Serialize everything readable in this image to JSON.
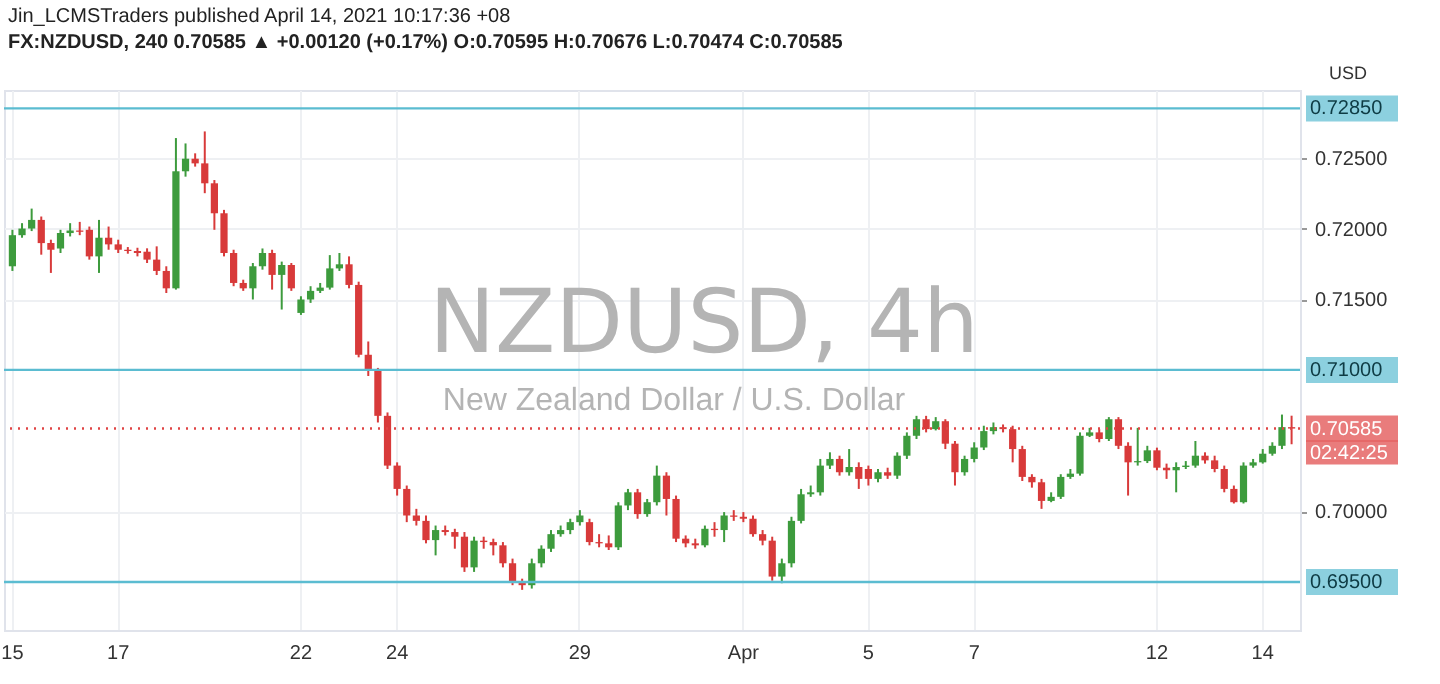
{
  "chart_data": {
    "type": "candlestick",
    "title": "FX:NZDUSD, 240  0.70585 ▲ +0.00120 (+0.17%)  O:0.70595  H:0.70676  L:0.70474  C:0.70585",
    "ylabel": "USD",
    "annotations": [
      "Jin_LCMSTraders published April 14, 2021 10:17:36 +08",
      "NZDUSD, 4h",
      "New Zealand Dollar / U.S. Dollar",
      "02:42:25"
    ],
    "categories": [
      "15",
      null,
      null,
      null,
      null,
      null,
      null,
      null,
      null,
      null,
      null,
      "17",
      null,
      null,
      null,
      null,
      null,
      null,
      null,
      null,
      null,
      null,
      null,
      null,
      null,
      null,
      null,
      null,
      null,
      null,
      "22",
      null,
      null,
      null,
      null,
      null,
      null,
      null,
      null,
      null,
      "24",
      null,
      null,
      null,
      null,
      null,
      null,
      null,
      null,
      null,
      null,
      null,
      null,
      null,
      null,
      null,
      null,
      null,
      null,
      "29",
      null,
      null,
      null,
      null,
      null,
      null,
      null,
      null,
      null,
      null,
      null,
      null,
      null,
      null,
      null,
      null,
      "Apr",
      null,
      null,
      null,
      null,
      null,
      null,
      null,
      null,
      null,
      null,
      null,
      null,
      "5",
      null,
      null,
      null,
      null,
      null,
      null,
      null,
      null,
      null,
      null,
      "7",
      null,
      null,
      null,
      null,
      null,
      null,
      null,
      null,
      null,
      null,
      null,
      null,
      null,
      null,
      null,
      null,
      null,
      null,
      "12",
      null,
      null,
      null,
      null,
      null,
      null,
      null,
      null,
      null,
      null,
      "14",
      null,
      null,
      null
    ],
    "ohlc": [
      [
        0.71733,
        0.71991,
        0.717,
        0.71953
      ],
      [
        0.71953,
        0.72038,
        0.71935,
        0.72
      ],
      [
        0.72,
        0.72141,
        0.71982,
        0.72061
      ],
      [
        0.72061,
        0.72085,
        0.71815,
        0.71897
      ],
      [
        0.71897,
        0.71921,
        0.71686,
        0.7185
      ],
      [
        0.71859,
        0.71991,
        0.71827,
        0.71968
      ],
      [
        0.71968,
        0.72038,
        0.71944,
        0.71986
      ],
      [
        0.71986,
        0.72047,
        0.71953,
        0.71977
      ],
      [
        0.71991,
        0.72014,
        0.7178,
        0.71803
      ],
      [
        0.71803,
        0.72061,
        0.71686,
        0.71935
      ],
      [
        0.71935,
        0.72014,
        0.7185,
        0.71888
      ],
      [
        0.71888,
        0.71921,
        0.71827,
        0.7185
      ],
      [
        0.7185,
        0.71869,
        0.71822,
        0.71841
      ],
      [
        0.71841,
        0.71864,
        0.71803,
        0.71827
      ],
      [
        0.71836,
        0.7186,
        0.71756,
        0.7178
      ],
      [
        0.7178,
        0.71874,
        0.71671,
        0.717
      ],
      [
        0.717,
        0.71733,
        0.71544,
        0.71577
      ],
      [
        0.71577,
        0.7264,
        0.71568,
        0.72405
      ],
      [
        0.72405,
        0.72602,
        0.72367,
        0.72494
      ],
      [
        0.72494,
        0.72532,
        0.72438,
        0.72461
      ],
      [
        0.72461,
        0.72687,
        0.7225,
        0.7232
      ],
      [
        0.7232,
        0.72343,
        0.71991,
        0.72108
      ],
      [
        0.72108,
        0.72132,
        0.71803,
        0.71827
      ],
      [
        0.71827,
        0.7185,
        0.71592,
        0.71615
      ],
      [
        0.71615,
        0.71638,
        0.71559,
        0.71577
      ],
      [
        0.71577,
        0.71756,
        0.71498,
        0.71733
      ],
      [
        0.71733,
        0.71859,
        0.71709,
        0.71827
      ],
      [
        0.71827,
        0.7185,
        0.71568,
        0.71672
      ],
      [
        0.71672,
        0.71766,
        0.71427,
        0.71742
      ],
      [
        0.71742,
        0.71756,
        0.71559,
        0.71577
      ],
      [
        0.71403,
        0.71521,
        0.71389,
        0.71498
      ],
      [
        0.71498,
        0.71592,
        0.71474,
        0.71559
      ],
      [
        0.71559,
        0.71615,
        0.71544,
        0.71582
      ],
      [
        0.71582,
        0.71812,
        0.71568,
        0.71718
      ],
      [
        0.71718,
        0.71827,
        0.717,
        0.71747
      ],
      [
        0.71747,
        0.71803,
        0.71577,
        0.71601
      ],
      [
        0.71601,
        0.71624,
        0.71089,
        0.71107
      ],
      [
        0.71107,
        0.71201,
        0.70957,
        0.70995
      ],
      [
        0.70995,
        0.71014,
        0.70628,
        0.70675
      ],
      [
        0.70675,
        0.70699,
        0.70299,
        0.70323
      ],
      [
        0.70323,
        0.70346,
        0.70111,
        0.70158
      ],
      [
        0.70158,
        0.70182,
        0.69923,
        0.6997
      ],
      [
        0.6997,
        0.70017,
        0.69899,
        0.69932
      ],
      [
        0.69932,
        0.6997,
        0.69773,
        0.69796
      ],
      [
        0.69796,
        0.69899,
        0.69688,
        0.69867
      ],
      [
        0.69867,
        0.69899,
        0.69829,
        0.69853
      ],
      [
        0.69853,
        0.69876,
        0.69735,
        0.6982
      ],
      [
        0.6982,
        0.69853,
        0.69571,
        0.69603
      ],
      [
        0.69603,
        0.6982,
        0.69571,
        0.69792
      ],
      [
        0.69792,
        0.6982,
        0.69735,
        0.69782
      ],
      [
        0.69782,
        0.69806,
        0.69688,
        0.69759
      ],
      [
        0.69759,
        0.69782,
        0.69603,
        0.69632
      ],
      [
        0.69632,
        0.69665,
        0.69477,
        0.695
      ],
      [
        0.695,
        0.69523,
        0.69444,
        0.69477
      ],
      [
        0.69477,
        0.69665,
        0.69453,
        0.69632
      ],
      [
        0.69632,
        0.69759,
        0.69603,
        0.69735
      ],
      [
        0.69735,
        0.69867,
        0.69712,
        0.69838
      ],
      [
        0.69838,
        0.69899,
        0.6982,
        0.69867
      ],
      [
        0.69867,
        0.69947,
        0.69838,
        0.69923
      ],
      [
        0.69923,
        0.70008,
        0.69899,
        0.6997
      ],
      [
        0.69923,
        0.69947,
        0.69759,
        0.69782
      ],
      [
        0.69782,
        0.69838,
        0.69745,
        0.69773
      ],
      [
        0.69773,
        0.69829,
        0.69726,
        0.69745
      ],
      [
        0.69745,
        0.70064,
        0.69726,
        0.70041
      ],
      [
        0.70041,
        0.70158,
        0.70008,
        0.70134
      ],
      [
        0.70134,
        0.70158,
        0.69947,
        0.6998
      ],
      [
        0.6998,
        0.70087,
        0.69961,
        0.70064
      ],
      [
        0.70064,
        0.70323,
        0.70041,
        0.70252
      ],
      [
        0.70252,
        0.70276,
        0.6997,
        0.70087
      ],
      [
        0.70087,
        0.70111,
        0.69782,
        0.69806
      ],
      [
        0.69806,
        0.69829,
        0.69745,
        0.69773
      ],
      [
        0.69773,
        0.69806,
        0.69735,
        0.69759
      ],
      [
        0.69759,
        0.69899,
        0.69745,
        0.69876
      ],
      [
        0.69876,
        0.69923,
        0.6982,
        0.69867
      ],
      [
        0.69867,
        0.69994,
        0.69782,
        0.6997
      ],
      [
        0.6997,
        0.70008,
        0.69932,
        0.69961
      ],
      [
        0.69961,
        0.69994,
        0.69923,
        0.69947
      ],
      [
        0.69947,
        0.6997,
        0.6982,
        0.69838
      ],
      [
        0.69838,
        0.69867,
        0.69759,
        0.69792
      ],
      [
        0.69792,
        0.6982,
        0.69509,
        0.69538
      ],
      [
        0.69538,
        0.69665,
        0.69491,
        0.69632
      ],
      [
        0.69632,
        0.69961,
        0.69603,
        0.69932
      ],
      [
        0.69932,
        0.70158,
        0.69914,
        0.7012
      ],
      [
        0.7012,
        0.70182,
        0.70102,
        0.70134
      ],
      [
        0.70134,
        0.7037,
        0.70111,
        0.70323
      ],
      [
        0.70323,
        0.70417,
        0.70299,
        0.7037
      ],
      [
        0.7037,
        0.70393,
        0.70252,
        0.70276
      ],
      [
        0.70276,
        0.7044,
        0.70252,
        0.70313
      ],
      [
        0.70313,
        0.70346,
        0.70158,
        0.70229
      ],
      [
        0.70299,
        0.70323,
        0.70182,
        0.70229
      ],
      [
        0.70229,
        0.70299,
        0.70205,
        0.70276
      ],
      [
        0.70276,
        0.70308,
        0.70229,
        0.70252
      ],
      [
        0.70252,
        0.70417,
        0.70229,
        0.70393
      ],
      [
        0.70393,
        0.70558,
        0.7037,
        0.70534
      ],
      [
        0.70534,
        0.70675,
        0.70511,
        0.70651
      ],
      [
        0.70651,
        0.70675,
        0.70558,
        0.70581
      ],
      [
        0.70581,
        0.70666,
        0.70572,
        0.70637
      ],
      [
        0.70637,
        0.70651,
        0.7044,
        0.70478
      ],
      [
        0.70478,
        0.70497,
        0.70182,
        0.70276
      ],
      [
        0.70276,
        0.70393,
        0.70252,
        0.7037
      ],
      [
        0.7037,
        0.70488,
        0.70346,
        0.70451
      ],
      [
        0.70451,
        0.70605,
        0.70433,
        0.70567
      ],
      [
        0.70567,
        0.70628,
        0.70544,
        0.70595
      ],
      [
        0.70595,
        0.70614,
        0.70558,
        0.70581
      ],
      [
        0.70581,
        0.70605,
        0.70346,
        0.7044
      ],
      [
        0.7044,
        0.70463,
        0.70214,
        0.70243
      ],
      [
        0.70243,
        0.70262,
        0.70167,
        0.70205
      ],
      [
        0.70205,
        0.70229,
        0.70017,
        0.70073
      ],
      [
        0.70073,
        0.70134,
        0.70064,
        0.70102
      ],
      [
        0.70102,
        0.70262,
        0.70087,
        0.70243
      ],
      [
        0.70243,
        0.70299,
        0.70229,
        0.70266
      ],
      [
        0.70266,
        0.70558,
        0.70252,
        0.70534
      ],
      [
        0.70534,
        0.7059,
        0.70525,
        0.70558
      ],
      [
        0.70558,
        0.70581,
        0.70488,
        0.70511
      ],
      [
        0.70511,
        0.70666,
        0.70497,
        0.70651
      ],
      [
        0.70651,
        0.70666,
        0.7044,
        0.70463
      ],
      [
        0.70463,
        0.70488,
        0.70111,
        0.70346
      ],
      [
        0.70346,
        0.7059,
        0.70323,
        0.70355
      ],
      [
        0.70355,
        0.70463,
        0.70341,
        0.70431
      ],
      [
        0.70431,
        0.7045,
        0.7029,
        0.70308
      ],
      [
        0.70308,
        0.70337,
        0.70229,
        0.7029
      ],
      [
        0.7029,
        0.70346,
        0.70134,
        0.70313
      ],
      [
        0.70313,
        0.70355,
        0.70299,
        0.70323
      ],
      [
        0.70323,
        0.70497,
        0.70308,
        0.70393
      ],
      [
        0.70393,
        0.70417,
        0.70337,
        0.7036
      ],
      [
        0.7036,
        0.70393,
        0.70276,
        0.70299
      ],
      [
        0.70299,
        0.70323,
        0.70134,
        0.70158
      ],
      [
        0.70158,
        0.70182,
        0.70055,
        0.70064
      ],
      [
        0.70064,
        0.70346,
        0.70055,
        0.70323
      ],
      [
        0.70323,
        0.7037,
        0.70308,
        0.70346
      ],
      [
        0.70346,
        0.7044,
        0.70337,
        0.70407
      ],
      [
        0.70407,
        0.70488,
        0.70393,
        0.70463
      ],
      [
        0.70463,
        0.70684,
        0.7044,
        0.70595
      ],
      [
        0.70595,
        0.70676,
        0.70474,
        0.70585
      ]
    ],
    "colors": [
      "#3d9b3d",
      "#3d9b3d",
      "#3d9b3d",
      "#d83a3a",
      "#d83a3a",
      "#3d9b3d",
      "#3d9b3d",
      "#d83a3a",
      "#d83a3a",
      "#3d9b3d",
      "#d83a3a",
      "#d83a3a",
      "#d83a3a",
      "#d83a3a",
      "#d83a3a",
      "#d83a3a",
      "#d83a3a",
      "#3d9b3d",
      "#3d9b3d",
      "#d83a3a",
      "#d83a3a",
      "#d83a3a",
      "#d83a3a",
      "#d83a3a",
      "#d83a3a",
      "#3d9b3d",
      "#3d9b3d",
      "#d83a3a",
      "#3d9b3d",
      "#d83a3a",
      "#3d9b3d",
      "#3d9b3d",
      "#3d9b3d",
      "#3d9b3d",
      "#3d9b3d",
      "#d83a3a",
      "#d83a3a",
      "#d83a3a",
      "#d83a3a",
      "#d83a3a",
      "#d83a3a",
      "#d83a3a",
      "#d83a3a",
      "#d83a3a",
      "#3d9b3d",
      "#d83a3a",
      "#d83a3a",
      "#d83a3a",
      "#3d9b3d",
      "#d83a3a",
      "#d83a3a",
      "#d83a3a",
      "#d83a3a",
      "#d83a3a",
      "#3d9b3d",
      "#3d9b3d",
      "#3d9b3d",
      "#3d9b3d",
      "#3d9b3d",
      "#3d9b3d",
      "#d83a3a",
      "#d83a3a",
      "#d83a3a",
      "#3d9b3d",
      "#3d9b3d",
      "#d83a3a",
      "#3d9b3d",
      "#3d9b3d",
      "#d83a3a",
      "#d83a3a",
      "#d83a3a",
      "#d83a3a",
      "#3d9b3d",
      "#d83a3a",
      "#3d9b3d",
      "#d83a3a",
      "#d83a3a",
      "#d83a3a",
      "#d83a3a",
      "#d83a3a",
      "#3d9b3d",
      "#3d9b3d",
      "#3d9b3d",
      "#3d9b3d",
      "#3d9b3d",
      "#3d9b3d",
      "#d83a3a",
      "#3d9b3d",
      "#d83a3a",
      "#d83a3a",
      "#3d9b3d",
      "#d83a3a",
      "#3d9b3d",
      "#3d9b3d",
      "#3d9b3d",
      "#d83a3a",
      "#3d9b3d",
      "#d83a3a",
      "#d83a3a",
      "#3d9b3d",
      "#3d9b3d",
      "#3d9b3d",
      "#3d9b3d",
      "#d83a3a",
      "#d83a3a",
      "#d83a3a",
      "#d83a3a",
      "#d83a3a",
      "#3d9b3d",
      "#3d9b3d",
      "#3d9b3d",
      "#3d9b3d",
      "#3d9b3d",
      "#d83a3a",
      "#3d9b3d",
      "#d83a3a",
      "#d83a3a",
      "#3d9b3d",
      "#3d9b3d",
      "#d83a3a",
      "#d83a3a",
      "#3d9b3d",
      "#3d9b3d",
      "#3d9b3d",
      "#d83a3a",
      "#d83a3a",
      "#d83a3a",
      "#d83a3a",
      "#3d9b3d",
      "#3d9b3d",
      "#3d9b3d",
      "#3d9b3d",
      "#3d9b3d",
      "#d83a3a"
    ],
    "ylim": [
      0.6916,
      0.7298
    ],
    "yticks": [
      {
        "value": 0.7,
        "label": "0.70000"
      },
      {
        "value": 0.715,
        "label": "0.71500"
      },
      {
        "value": 0.72,
        "label": "0.72000"
      },
      {
        "value": 0.725,
        "label": "0.72500"
      }
    ],
    "ref_lines": [
      {
        "axis": "y",
        "value": 0.7285,
        "label": "0.72850",
        "color": "#5bbcd1"
      },
      {
        "axis": "y",
        "value": 0.71,
        "label": "0.71000",
        "color": "#5bbcd1"
      },
      {
        "axis": "y",
        "value": 0.695,
        "label": "0.69500",
        "color": "#5bbcd1"
      },
      {
        "axis": "y",
        "value": 0.70585,
        "label": "0.70585",
        "color": "#e04444",
        "line_style": "dotted"
      }
    ],
    "grid": true
  }
}
